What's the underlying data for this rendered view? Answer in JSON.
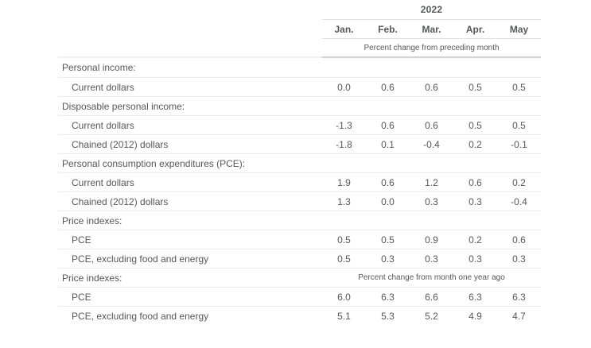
{
  "chart_data": {
    "type": "table",
    "year": "2022",
    "columns": [
      "Jan.",
      "Feb.",
      "Mar.",
      "Apr.",
      "May"
    ],
    "column_subheader": "Percent change from preceding month",
    "sections": [
      {
        "label": "Personal income:",
        "note": "",
        "rows": [
          {
            "label": "Current dollars",
            "values": [
              "0.0",
              "0.6",
              "0.6",
              "0.5",
              "0.5"
            ]
          }
        ]
      },
      {
        "label": "Disposable personal income:",
        "note": "",
        "rows": [
          {
            "label": "Current dollars",
            "values": [
              "-1.3",
              "0.6",
              "0.6",
              "0.5",
              "0.5"
            ]
          },
          {
            "label": "Chained (2012) dollars",
            "values": [
              "-1.8",
              "0.1",
              "-0.4",
              "0.2",
              "-0.1"
            ]
          }
        ]
      },
      {
        "label": "Personal consumption expenditures (PCE):",
        "note": "",
        "rows": [
          {
            "label": "Current dollars",
            "values": [
              "1.9",
              "0.6",
              "1.2",
              "0.6",
              "0.2"
            ]
          },
          {
            "label": "Chained (2012) dollars",
            "values": [
              "1.3",
              "0.0",
              "0.3",
              "0.3",
              "-0.4"
            ]
          }
        ]
      },
      {
        "label": "Price indexes:",
        "note": "",
        "rows": [
          {
            "label": "PCE",
            "values": [
              "0.5",
              "0.5",
              "0.9",
              "0.2",
              "0.6"
            ]
          },
          {
            "label": "PCE, excluding food and energy",
            "values": [
              "0.5",
              "0.3",
              "0.3",
              "0.3",
              "0.3"
            ]
          }
        ]
      },
      {
        "label": "Price indexes:",
        "note": "Percent change from month one year ago",
        "rows": [
          {
            "label": "PCE",
            "values": [
              "6.0",
              "6.3",
              "6.6",
              "6.3",
              "6.3"
            ]
          },
          {
            "label": "PCE, excluding food and energy",
            "values": [
              "5.1",
              "5.3",
              "5.2",
              "4.9",
              "4.7"
            ]
          }
        ]
      }
    ]
  },
  "colors": {
    "text": "#56575b",
    "row_separator": "#e9e9e9",
    "header_line": "#e2e2e2",
    "subheader_underline": "#d2d2d2",
    "background": "#ffffff"
  }
}
